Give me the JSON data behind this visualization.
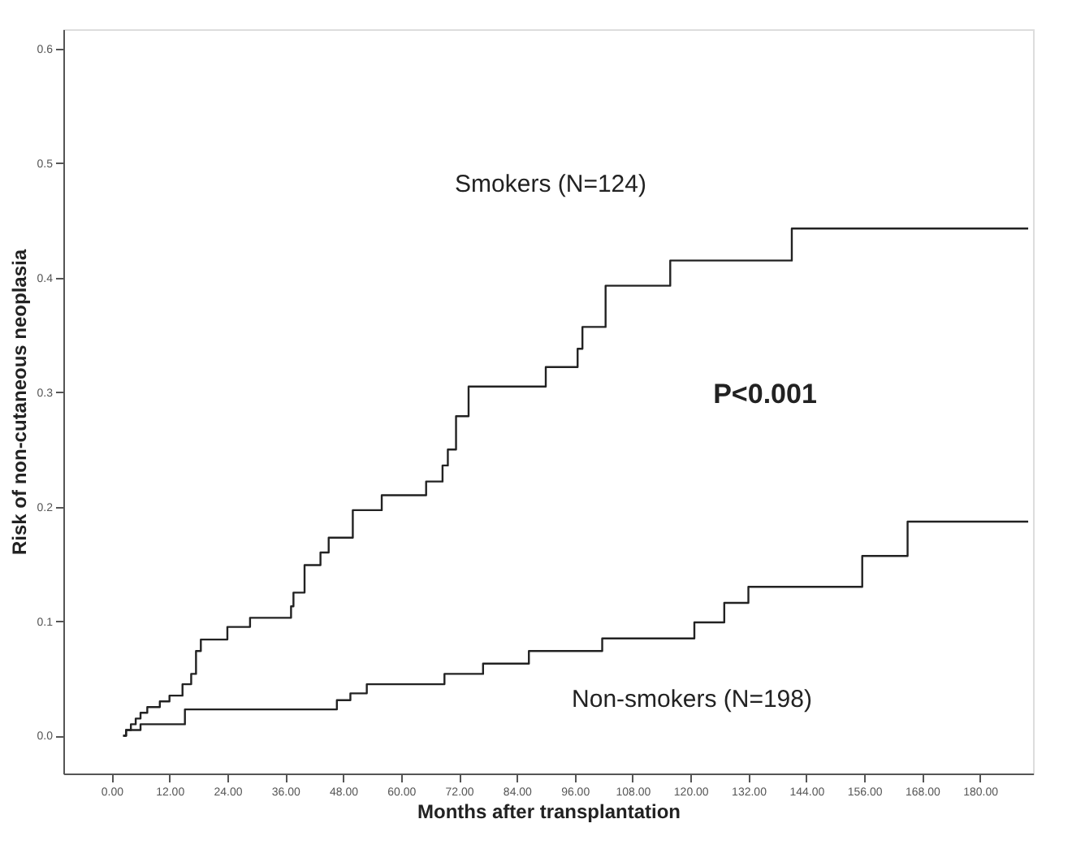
{
  "chart_data": {
    "type": "step",
    "xlabel": "Months after transplantation",
    "ylabel": "Risk of non-cutaneous neoplasia",
    "annotations": [
      "P<0.001"
    ],
    "series": [
      {
        "name": "Smokers (N=124)",
        "color": "#222222",
        "x": [
          2.4,
          3,
          4,
          5,
          6,
          7.4,
          10,
          12,
          14.7,
          16.5,
          17.5,
          18.5,
          24,
          28.7,
          37.2,
          37.7,
          40,
          43.3,
          45,
          50,
          56,
          65.2,
          68.6,
          69.7,
          71.4,
          74,
          90,
          96.6,
          97.6,
          102.4,
          115.8,
          141,
          190
        ],
        "values": [
          0,
          0.005,
          0.01,
          0.015,
          0.02,
          0.025,
          0.03,
          0.035,
          0.045,
          0.054,
          0.074,
          0.084,
          0.095,
          0.103,
          0.113,
          0.125,
          0.149,
          0.16,
          0.173,
          0.197,
          0.21,
          0.222,
          0.236,
          0.25,
          0.279,
          0.305,
          0.322,
          0.338,
          0.357,
          0.393,
          0.415,
          0.443,
          0.443
        ]
      },
      {
        "name": "Non-smokers (N=198)",
        "color": "#222222",
        "x": [
          2.4,
          3,
          6,
          15.2,
          46.7,
          49.5,
          52.9,
          69,
          77,
          86.5,
          101.7,
          120.8,
          127,
          132,
          155.6,
          165,
          190
        ],
        "values": [
          0,
          0.005,
          0.01,
          0.023,
          0.031,
          0.037,
          0.045,
          0.054,
          0.063,
          0.074,
          0.085,
          0.099,
          0.116,
          0.13,
          0.157,
          0.187,
          0.187
        ]
      }
    ],
    "xlim": [
      -10,
      191
    ],
    "xticks": [
      {
        "value": 0,
        "label": "0.00"
      },
      {
        "value": 12,
        "label": "12.00"
      },
      {
        "value": 24,
        "label": "24.00"
      },
      {
        "value": 36,
        "label": "36.00"
      },
      {
        "value": 48,
        "label": "48.00"
      },
      {
        "value": 60,
        "label": "60.00"
      },
      {
        "value": 72,
        "label": "72.00"
      },
      {
        "value": 84,
        "label": "84.00"
      },
      {
        "value": 96,
        "label": "96.00"
      },
      {
        "value": 108,
        "label": "108.00"
      },
      {
        "value": 120,
        "label": "120.00"
      },
      {
        "value": 132,
        "label": "132.00"
      },
      {
        "value": 144,
        "label": "144.00"
      },
      {
        "value": 156,
        "label": "156.00"
      },
      {
        "value": 168,
        "label": "168.00"
      },
      {
        "value": 180,
        "label": "180.00"
      }
    ],
    "ylim": [
      -0.033,
      0.617
    ],
    "yticks": [
      {
        "value": 0,
        "label": "0.0"
      },
      {
        "value": 0.1,
        "label": "0.1"
      },
      {
        "value": 0.2,
        "label": "0.2"
      },
      {
        "value": 0.3,
        "label": "0.3"
      },
      {
        "value": 0.4,
        "label": "0.4"
      },
      {
        "value": 0.5,
        "label": "0.5"
      },
      {
        "value": 0.6,
        "label": "0.6"
      }
    ],
    "grid": false,
    "marker": "none",
    "line_style": "solid"
  }
}
